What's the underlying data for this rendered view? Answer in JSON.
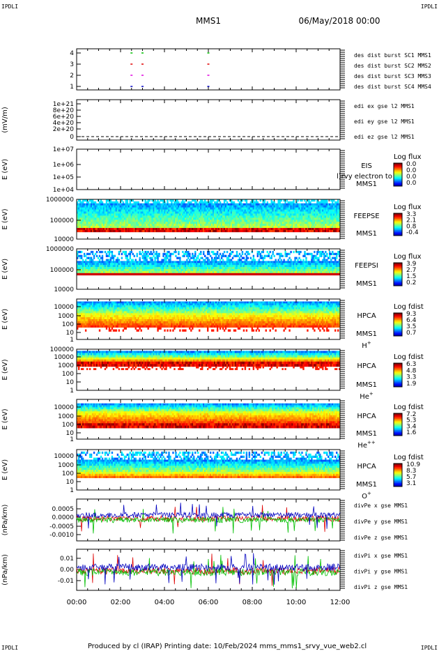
{
  "corner_labels": {
    "tl": "IPDLI",
    "tr": "IPDLI",
    "bl": "IPDLI",
    "br": "IPDLI"
  },
  "header": {
    "spacecraft": "MMS1",
    "date": "06/May/2018 00:00"
  },
  "footer": {
    "text": "Produced by cl (IRAP)   Printing date: 10/Feb/2024   mms_mms1_srvy_vue_web2.cl"
  },
  "x_axis": {
    "ticks": [
      "00:00",
      "02:00",
      "04:00",
      "06:00",
      "08:00",
      "10:00",
      "12:00"
    ],
    "range_hours": [
      0,
      12
    ]
  },
  "colors": {
    "red": "#e00000",
    "green": "#00c000",
    "blue": "#0000c0",
    "magenta": "#e000e0",
    "black": "#000000"
  },
  "chart_data": [
    {
      "id": "burst",
      "type": "scatter",
      "yticks": [
        "4",
        "3",
        "2",
        "1"
      ],
      "series": [
        {
          "name": "des dist burst SC1 MMS1",
          "color": "#0000c0",
          "level": 1,
          "x": [
            2.5,
            3.0,
            6.0
          ]
        },
        {
          "name": "des dist burst SC2 MMS2",
          "color": "#e000e0",
          "level": 2,
          "x": [
            2.5,
            3.0,
            6.0
          ]
        },
        {
          "name": "des dist burst SC3 MMS3",
          "color": "#e00000",
          "level": 3,
          "x": [
            2.5,
            3.0,
            6.0
          ]
        },
        {
          "name": "des dist burst SC4 MMS4",
          "color": "#00c000",
          "level": 4,
          "x": [
            2.5,
            3.0,
            6.0
          ]
        }
      ]
    },
    {
      "id": "edi",
      "type": "line",
      "ylabel": "(mV/m)",
      "yticks": [
        "1e+21",
        "8e+20",
        "6e+20",
        "4e+20",
        "2e+20",
        "0"
      ],
      "series": [
        {
          "name": "edi ex gse l2 MMS1",
          "color": "#e00000"
        },
        {
          "name": "edi ey gse l2 MMS1",
          "color": "#00c000"
        },
        {
          "name": "edi ez gse l2 MMS1",
          "color": "#0000c0"
        }
      ]
    },
    {
      "id": "eis",
      "type": "heatmap",
      "ylabel": "E (eV)",
      "yticks": [
        "1e+07",
        "1e+06",
        "1e+05",
        "1e+04"
      ],
      "label_lines": [
        "EIS",
        "MMS1"
      ],
      "overlay_text": "l)rvy electron to",
      "cbar_title": "Log flux",
      "cbar_ticks": [
        "0.0",
        "0.0",
        "0.0",
        "0.0"
      ]
    },
    {
      "id": "feepse",
      "type": "heatmap",
      "ylabel": "E (eV)",
      "yticks": [
        "1000000",
        "100000",
        "10000"
      ],
      "label_lines": [
        "FEEPSE",
        "MMS1"
      ],
      "cbar_title": "Log flux",
      "cbar_ticks": [
        "3.3",
        "2.1",
        "0.8",
        "-0.4"
      ]
    },
    {
      "id": "feepsi",
      "type": "heatmap",
      "ylabel": "E (eV)",
      "yticks": [
        "1000000",
        "100000",
        "10000"
      ],
      "label_lines": [
        "FEEPSI",
        "MMS1"
      ],
      "cbar_title": "Log flux",
      "cbar_ticks": [
        "3.9",
        "2.7",
        "1.5",
        "0.2"
      ]
    },
    {
      "id": "hpca_h",
      "type": "heatmap",
      "ylabel": "E (eV)",
      "yticks": [
        "10000",
        "1000",
        "100",
        "10",
        "1"
      ],
      "label_lines": [
        "HPCA",
        "MMS1"
      ],
      "species": "H",
      "species_sup": "+",
      "cbar_title": "Log fdist",
      "cbar_ticks": [
        "9.3",
        "6.4",
        "3.5",
        "0.7"
      ]
    },
    {
      "id": "hpca_he",
      "type": "heatmap",
      "ylabel": "E (eV)",
      "yticks": [
        "100000",
        "10000",
        "1000",
        "100",
        "10",
        "1"
      ],
      "label_lines": [
        "HPCA",
        "MMS1"
      ],
      "species": "He",
      "species_sup": "+",
      "cbar_title": "Log fdist",
      "cbar_ticks": [
        "6.3",
        "4.8",
        "3.3",
        "1.9"
      ]
    },
    {
      "id": "hpca_hepp",
      "type": "heatmap",
      "ylabel": "E (eV)",
      "yticks": [
        "10000",
        "1000",
        "100",
        "10",
        "1"
      ],
      "label_lines": [
        "HPCA",
        "MMS1"
      ],
      "species": "He",
      "species_sup": "++",
      "cbar_title": "Log fdist",
      "cbar_ticks": [
        "7.2",
        "5.3",
        "3.4",
        "1.6"
      ]
    },
    {
      "id": "hpca_o",
      "type": "heatmap",
      "ylabel": "E (eV)",
      "yticks": [
        "10000",
        "1000",
        "100",
        "10",
        "1"
      ],
      "label_lines": [
        "HPCA",
        "MMS1"
      ],
      "species": "O",
      "species_sup": "+",
      "cbar_title": "Log fdist",
      "cbar_ticks": [
        "10.9",
        "8.3",
        "5.7",
        "3.1"
      ]
    },
    {
      "id": "divpe",
      "type": "line",
      "ylabel": "(nPa/km)",
      "yticks": [
        "0.0005",
        "0.0000",
        "-0.0005",
        "-0.0010"
      ],
      "series": [
        {
          "name": "divPe x gse MMS1",
          "color": "#e00000"
        },
        {
          "name": "divPe y gse MMS1",
          "color": "#00c000"
        },
        {
          "name": "divPe z gse MMS1",
          "color": "#0000c0"
        }
      ]
    },
    {
      "id": "divpi",
      "type": "line",
      "ylabel": "(nPa/km)",
      "yticks": [
        "0.01",
        "0.00",
        "-0.01"
      ],
      "series": [
        {
          "name": "divPi x gse MMS1",
          "color": "#e00000"
        },
        {
          "name": "divPi y gse MMS1",
          "color": "#00c000"
        },
        {
          "name": "divPi z gse MMS1",
          "color": "#0000c0"
        }
      ]
    }
  ]
}
